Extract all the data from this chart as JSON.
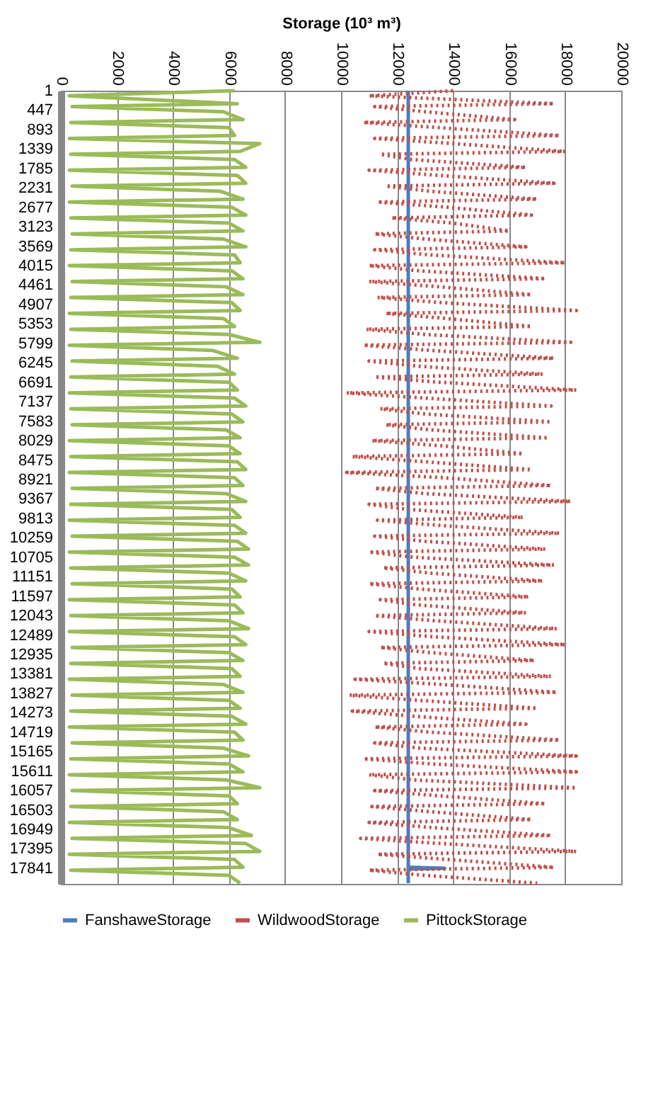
{
  "chart_data": {
    "type": "line",
    "orientation": "horizontal",
    "xlabel": "Storage (10³ m³)",
    "xlim": [
      0,
      20000
    ],
    "xticks": [
      0,
      2000,
      4000,
      6000,
      8000,
      10000,
      12000,
      14000,
      16000,
      18000,
      20000
    ],
    "ylim": [
      18200,
      1
    ],
    "yticks": [
      1,
      447,
      893,
      1339,
      1785,
      2231,
      2677,
      3123,
      3569,
      4015,
      4461,
      4907,
      5353,
      5799,
      6245,
      6691,
      7137,
      7583,
      8029,
      8475,
      8921,
      9367,
      9813,
      10259,
      10705,
      11151,
      11597,
      12043,
      12489,
      12935,
      13381,
      13827,
      14273,
      14719,
      15165,
      15611,
      16057,
      16503,
      16949,
      17395,
      17841
    ],
    "grid": "x",
    "legend": "bottom",
    "x": [
      1,
      120,
      300,
      366,
      485,
      665,
      731,
      850,
      1030,
      1096,
      1215,
      1395,
      1461,
      1580,
      1760,
      1826,
      1945,
      2125,
      2191,
      2310,
      2490,
      2556,
      2675,
      2855,
      2921,
      3040,
      3220,
      3286,
      3405,
      3585,
      3651,
      3770,
      3950,
      4016,
      4135,
      4315,
      4381,
      4500,
      4680,
      4746,
      4865,
      5045,
      5111,
      5230,
      5410,
      5476,
      5595,
      5775,
      5841,
      5960,
      6140,
      6206,
      6325,
      6505,
      6571,
      6690,
      6870,
      6936,
      7055,
      7235,
      7301,
      7420,
      7600,
      7666,
      7785,
      7965,
      8031,
      8150,
      8330,
      8396,
      8515,
      8695,
      8761,
      8880,
      9060,
      9126,
      9245,
      9425,
      9491,
      9610,
      9790,
      9856,
      9975,
      10155,
      10221,
      10340,
      10520,
      10586,
      10705,
      10885,
      10951,
      11070,
      11250,
      11316,
      11435,
      11615,
      11681,
      11800,
      11980,
      12046,
      12165,
      12345,
      12411,
      12530,
      12710,
      12776,
      12895,
      13075,
      13141,
      13260,
      13440,
      13506,
      13625,
      13805,
      13871,
      13990,
      14170,
      14236,
      14355,
      14535,
      14601,
      14720,
      14900,
      14966,
      15085,
      15265,
      15331,
      15450,
      15630,
      15696,
      15815,
      15995,
      16061,
      16180,
      16360,
      16426,
      16545,
      16725,
      16791,
      16910,
      17090,
      17156,
      17275,
      17455,
      17521,
      17640,
      17820,
      17886,
      18005,
      18185
    ],
    "series": [
      {
        "name": "FanshaweStorage",
        "color": "#4a7ebb",
        "line_style": "solid",
        "x": [
          1,
          17820,
          17841,
          17860,
          18185
        ],
        "values": [
          12400,
          12400,
          13700,
          12400,
          12400
        ]
      },
      {
        "name": "WildwoodStorage",
        "color": "#c0504d",
        "line_style": "dotted",
        "values": [
          14000,
          11000,
          17600,
          11200,
          13000,
          16200,
          10800,
          13500,
          17800,
          11200,
          14000,
          18000,
          11400,
          12500,
          16600,
          11000,
          13500,
          17600,
          11600,
          13200,
          17000,
          11300,
          13800,
          16800,
          11800,
          14000,
          16000,
          11200,
          13000,
          16600,
          11200,
          13200,
          18000,
          11000,
          12800,
          17300,
          11000,
          13500,
          16800,
          11300,
          13600,
          18400,
          11600,
          13800,
          16800,
          10900,
          13000,
          18200,
          10800,
          13200,
          17600,
          11000,
          12800,
          17200,
          11200,
          13500,
          18400,
          10200,
          13000,
          17500,
          11400,
          13000,
          17500,
          11600,
          13200,
          17400,
          11100,
          13600,
          16500,
          10400,
          13000,
          16800,
          10200,
          13600,
          17500,
          11200,
          13000,
          18200,
          11000,
          12400,
          16500,
          11300,
          13500,
          17800,
          11200,
          13000,
          17300,
          11000,
          12600,
          17600,
          11500,
          13200,
          17200,
          11000,
          12800,
          16700,
          11400,
          12700,
          16600,
          11200,
          13400,
          17700,
          11000,
          13300,
          18000,
          11400,
          13200,
          16900,
          11500,
          12800,
          17500,
          10500,
          13600,
          17700,
          10300,
          12800,
          17000,
          10400,
          12600,
          16600,
          11200,
          13200,
          17800,
          11200,
          12800,
          18400,
          10800,
          13300,
          18400,
          11000,
          12600,
          18400,
          11200,
          13500,
          17300,
          11100,
          13200,
          16800,
          11000,
          13300,
          17500,
          10700,
          13600,
          18400,
          11300,
          13800,
          17600,
          11000,
          13000,
          17000
        ]
      },
      {
        "name": "PittockStorage",
        "color": "#9bbb59",
        "line_style": "solid",
        "values": [
          6200,
          300,
          6300,
          400,
          5800,
          6500,
          350,
          6000,
          6200,
          300,
          7100,
          6400,
          350,
          6200,
          6600,
          300,
          6300,
          6600,
          400,
          5700,
          6500,
          300,
          6100,
          6600,
          350,
          6000,
          6500,
          400,
          5800,
          6600,
          350,
          6200,
          6400,
          300,
          6100,
          6500,
          400,
          5900,
          6500,
          350,
          6100,
          6400,
          300,
          5800,
          6200,
          350,
          6000,
          7100,
          300,
          5400,
          6300,
          400,
          5600,
          6200,
          350,
          6000,
          6300,
          300,
          6200,
          6600,
          350,
          6100,
          6500,
          400,
          5900,
          6400,
          300,
          6000,
          6400,
          350,
          6300,
          6600,
          300,
          6200,
          6500,
          400,
          5900,
          6600,
          350,
          6100,
          6400,
          300,
          6200,
          6600,
          400,
          6300,
          6700,
          300,
          6200,
          6700,
          350,
          6000,
          6600,
          400,
          6100,
          6400,
          300,
          6200,
          6500,
          350,
          6000,
          6700,
          300,
          6200,
          6600,
          400,
          6000,
          6500,
          350,
          6100,
          6400,
          300,
          5800,
          6500,
          400,
          6000,
          6400,
          350,
          6100,
          6600,
          300,
          6200,
          6500,
          400,
          5800,
          6700,
          350,
          6000,
          6500,
          300,
          5900,
          7100,
          400,
          6000,
          6300,
          350,
          5800,
          6300,
          300,
          6000,
          6800,
          400,
          6600,
          7100,
          300,
          6200,
          6500,
          350,
          6000,
          6400
        ]
      }
    ]
  }
}
